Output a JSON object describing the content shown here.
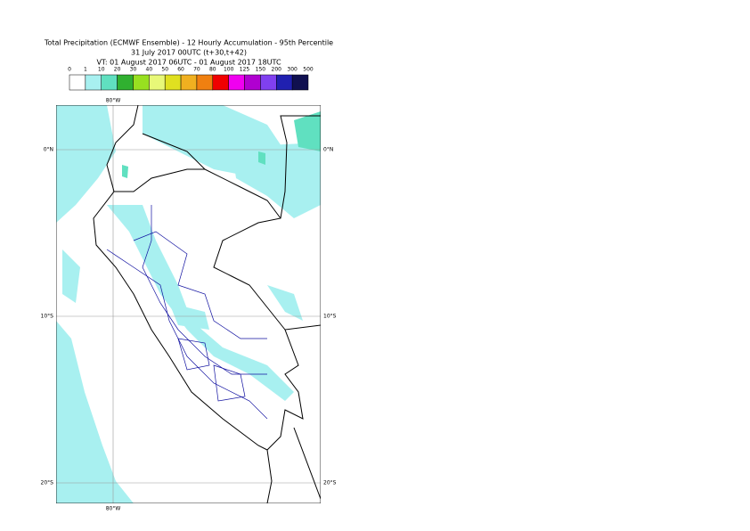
{
  "header": {
    "title": "Total Precipitation (ECMWF Ensemble) - 12 Hourly Accumulation - 95th Percentile",
    "run": "31 July 2017 00UTC (t+30,t+42)",
    "valid": "VT: 01 August 2017 06UTC - 01 August 2017 18UTC"
  },
  "legend": {
    "levels": [
      0,
      1,
      10,
      20,
      30,
      40,
      50,
      60,
      70,
      80,
      100,
      125,
      150,
      200,
      300,
      500
    ],
    "colors": [
      "#ffffff",
      "#a8f0f0",
      "#60e0c0",
      "#30b030",
      "#98e020",
      "#e8f878",
      "#e0e020",
      "#f0b020",
      "#f08010",
      "#f00000",
      "#f000f0",
      "#b000d0",
      "#8040f0",
      "#2020b0",
      "#101050"
    ]
  },
  "map": {
    "lon_labels": [
      "80°W"
    ],
    "lat_labels": [
      "0°N",
      "10°S",
      "20°S"
    ]
  }
}
